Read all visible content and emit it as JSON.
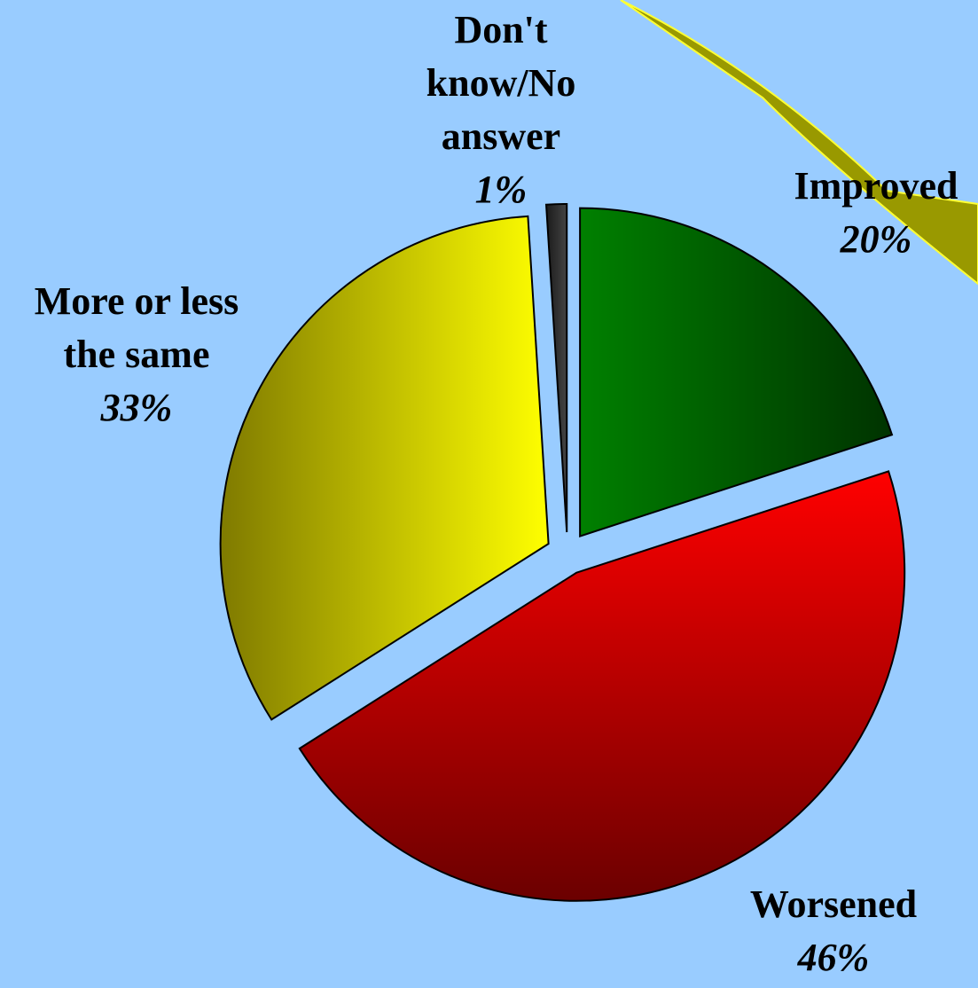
{
  "chart_data": {
    "type": "pie",
    "slices": [
      {
        "name": "Improved",
        "label_lines": [
          "Improved"
        ],
        "value": 20,
        "value_label": "20%",
        "color": "#008000",
        "color_dark": "#003300",
        "exploded": true
      },
      {
        "name": "Worsened",
        "label_lines": [
          "Worsened"
        ],
        "value": 46,
        "value_label": "46%",
        "color": "#ff0000",
        "color_dark": "#6b0000",
        "exploded": true
      },
      {
        "name": "More or less the same",
        "label_lines": [
          "More or less",
          "the same"
        ],
        "value": 33,
        "value_label": "33%",
        "color": "#ffff00",
        "color_dark": "#7f7a00",
        "exploded": true
      },
      {
        "name": "Don't know/No answer",
        "label_lines": [
          "Don't",
          "know/No",
          "answer"
        ],
        "value": 1,
        "value_label": "1%",
        "color": "#444444",
        "color_dark": "#1a1a1a",
        "exploded": true
      }
    ],
    "start_angle_deg": 0,
    "direction": "clockwise",
    "legend": "none"
  },
  "decoration": {
    "accent_color": "#ffff33",
    "accent_shadow": "#999900"
  }
}
